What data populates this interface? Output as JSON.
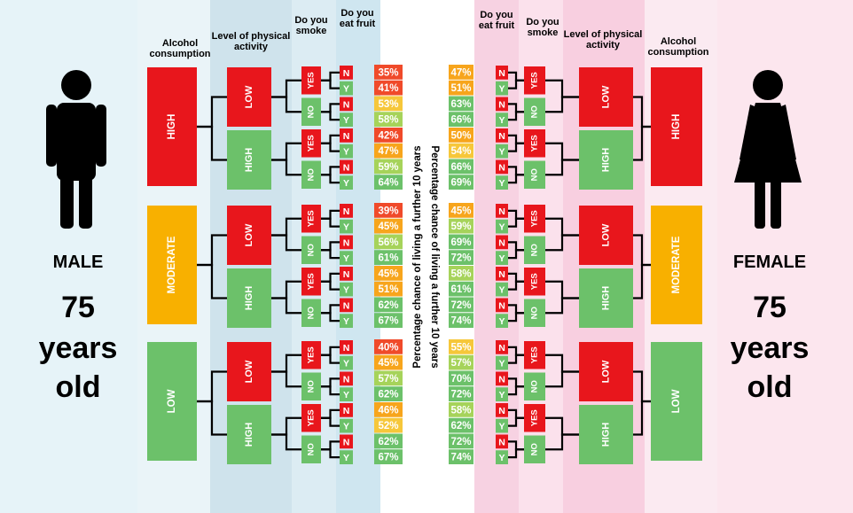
{
  "male": {
    "label": "MALE",
    "age": "75",
    "age_unit_line1": "years",
    "age_unit_line2": "old",
    "headers": {
      "alcohol": [
        "Alcohol",
        "consumption"
      ],
      "activity": [
        "Level of physical",
        "activity"
      ],
      "smoke": [
        "Do you",
        "smoke"
      ],
      "fruit": [
        "Do you",
        "eat fruit"
      ]
    },
    "axis_label": "Percentage chance of living a further 10 years",
    "alcohol_levels": [
      "HIGH",
      "MODERATE",
      "LOW"
    ],
    "activity_levels": [
      "LOW",
      "HIGH"
    ],
    "smoke_levels": [
      "YES",
      "NO"
    ],
    "fruit_levels": [
      "N",
      "Y"
    ],
    "percentages": [
      "35%",
      "41%",
      "53%",
      "58%",
      "42%",
      "47%",
      "59%",
      "64%",
      "39%",
      "45%",
      "56%",
      "61%",
      "45%",
      "51%",
      "62%",
      "67%",
      "40%",
      "45%",
      "57%",
      "62%",
      "46%",
      "52%",
      "62%",
      "67%"
    ]
  },
  "female": {
    "label": "FEMALE",
    "age": "75",
    "age_unit_line1": "years",
    "age_unit_line2": "old",
    "headers": {
      "alcohol": [
        "Alcohol",
        "consumption"
      ],
      "activity": [
        "Level of physical",
        "activity"
      ],
      "smoke": [
        "Do you",
        "smoke"
      ],
      "fruit": [
        "Do you",
        "eat fruit"
      ]
    },
    "axis_label": "Percentage chance of living a further 10 years",
    "alcohol_levels": [
      "HIGH",
      "MODERATE",
      "LOW"
    ],
    "activity_levels": [
      "LOW",
      "HIGH"
    ],
    "smoke_levels": [
      "YES",
      "NO"
    ],
    "fruit_levels": [
      "N",
      "Y"
    ],
    "percentages": [
      "47%",
      "51%",
      "63%",
      "66%",
      "50%",
      "54%",
      "66%",
      "69%",
      "45%",
      "59%",
      "69%",
      "72%",
      "58%",
      "61%",
      "72%",
      "74%",
      "55%",
      "57%",
      "70%",
      "72%",
      "58%",
      "62%",
      "72%",
      "74%"
    ]
  },
  "colors": {
    "red": "#e8161c",
    "green": "#6cc16a",
    "orange": "#f8b000",
    "pct_scale": [
      "#f04a2a",
      "#f7a51c",
      "#f6c73a",
      "#a6d35a",
      "#6cc16a"
    ]
  },
  "icons": {
    "male": "male-figure-icon",
    "female": "female-figure-icon"
  }
}
